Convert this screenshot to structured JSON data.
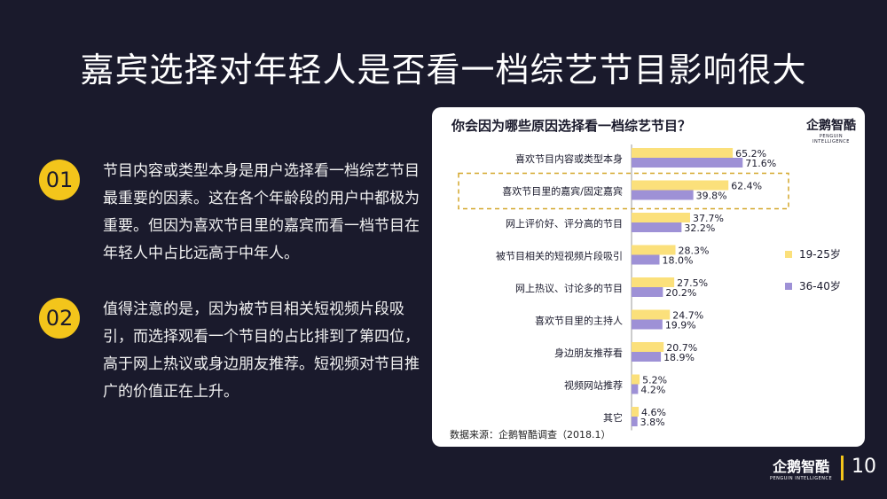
{
  "title": "嘉宾选择对年轻人是否看一档综艺节目影响很大",
  "points": [
    {
      "num": "01",
      "text": "节目内容或类型本身是用户选择看一档综艺节目最重要的因素。这在各个年龄段的用户中都极为重要。但因为喜欢节目里的嘉宾而看一档节目在年轻人中占比远高于中年人。"
    },
    {
      "num": "02",
      "text": "值得注意的是，因为被节目相关短视频片段吸引，而选择观看一个节目的占比排到了第四位，高于网上热议或身边朋友推荐。短视频对节目推广的价值正在上升。"
    }
  ],
  "logo": {
    "cn": "企鹅智酷",
    "en": "PENGUIN INTELLIGENCE"
  },
  "source": "数据来源：企鹅智酷调查（2018.1）",
  "page_number": "10",
  "colors": {
    "background": "#1a1a2c",
    "accent": "#f3c51b",
    "series1": "#fbe07b",
    "series2": "#9e91d6"
  },
  "chart_data": {
    "type": "bar",
    "orientation": "horizontal",
    "title": "你会因为哪些原因选择看一档综艺节目？",
    "categories": [
      "喜欢节目内容或类型本身",
      "喜欢节目里的嘉宾/固定嘉宾",
      "网上评价好、评分高的节目",
      "被节目相关的短视频片段吸引",
      "网上热议、讨论多的节目",
      "喜欢节目里的主持人",
      "身边朋友推荐看",
      "视频网站推荐",
      "其它"
    ],
    "series": [
      {
        "name": "19-25岁",
        "values": [
          65.2,
          62.4,
          37.7,
          28.3,
          27.5,
          24.7,
          20.7,
          5.2,
          4.6
        ],
        "labels": [
          "65.2%",
          "62.4%",
          "37.7%",
          "28.3%",
          "27.5%",
          "24.7%",
          "20.7%",
          "5.2%",
          "4.6%"
        ]
      },
      {
        "name": "36-40岁",
        "values": [
          71.6,
          39.8,
          32.2,
          18.0,
          20.2,
          19.9,
          18.9,
          4.2,
          3.8
        ],
        "labels": [
          "71.6%",
          "39.8%",
          "32.2%",
          "18.0%",
          "20.2%",
          "19.9%",
          "18.9%",
          "4.2%",
          "3.8%"
        ]
      }
    ],
    "highlight_category": "喜欢节目里的嘉宾/固定嘉宾",
    "legend_position": "right",
    "grid": false
  }
}
